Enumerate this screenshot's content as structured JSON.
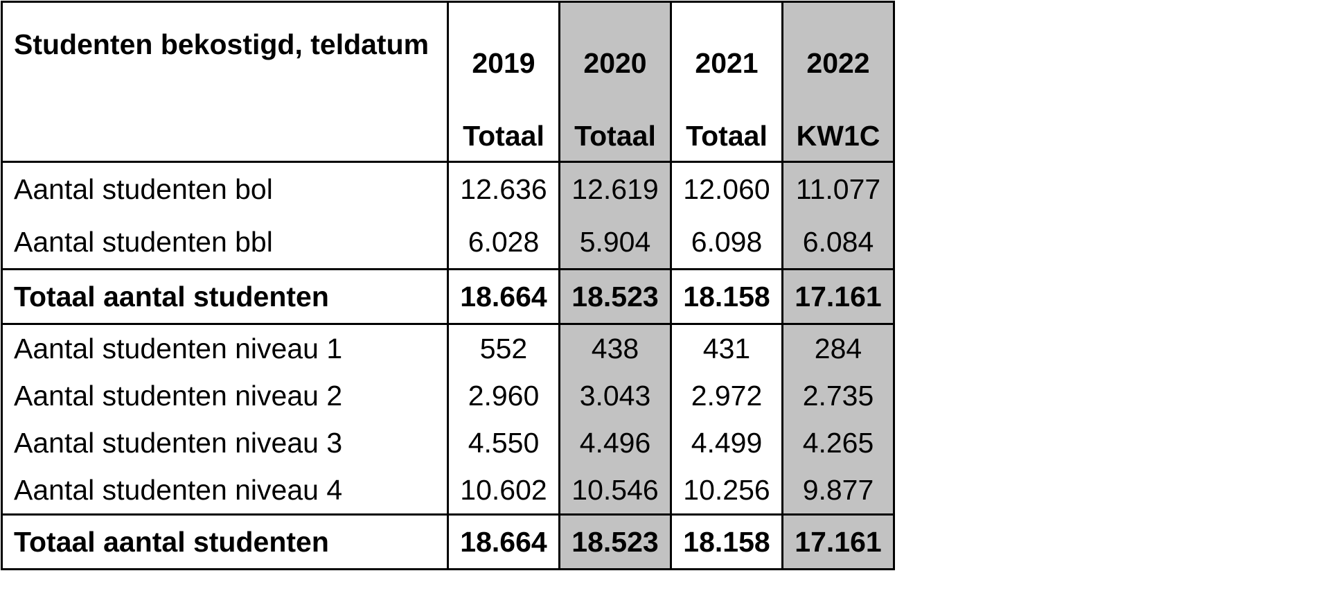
{
  "table": {
    "title": "Studenten bekostigd, teldatum",
    "years": [
      "2019",
      "2020",
      "2021",
      "2022"
    ],
    "subheaders": [
      "Totaal",
      "Totaal",
      "Totaal",
      "KW1C"
    ],
    "group1": [
      {
        "label": "Aantal studenten bol",
        "values": [
          "12.636",
          "12.619",
          "12.060",
          "11.077"
        ]
      },
      {
        "label": "Aantal studenten bbl",
        "values": [
          "6.028",
          "5.904",
          "6.098",
          "6.084"
        ]
      }
    ],
    "total1": {
      "label": "Totaal aantal studenten",
      "values": [
        "18.664",
        "18.523",
        "18.158",
        "17.161"
      ]
    },
    "group2": [
      {
        "label": "Aantal studenten niveau 1",
        "values": [
          "552",
          "438",
          "431",
          "284"
        ]
      },
      {
        "label": "Aantal studenten niveau 2",
        "values": [
          "2.960",
          "3.043",
          "2.972",
          "2.735"
        ]
      },
      {
        "label": "Aantal studenten niveau 3",
        "values": [
          "4.550",
          "4.496",
          "4.499",
          "4.265"
        ]
      },
      {
        "label": "Aantal studenten niveau 4",
        "values": [
          "10.602",
          "10.546",
          "10.256",
          "9.877"
        ]
      }
    ],
    "total2": {
      "label": "Totaal aantal studenten",
      "values": [
        "18.664",
        "18.523",
        "18.158",
        "17.161"
      ]
    },
    "shaded_column_color": "#c2c2c2"
  }
}
